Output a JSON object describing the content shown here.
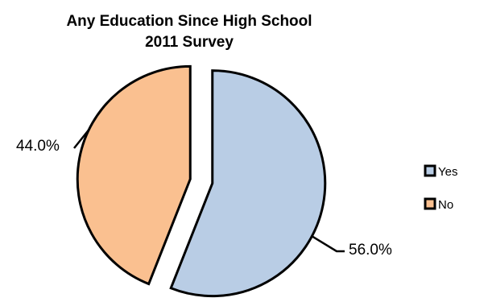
{
  "chart_data": {
    "type": "pie",
    "title": "Any Education Since High School",
    "subtitle": "2011 Survey",
    "categories": [
      "Yes",
      "No"
    ],
    "values": [
      56.0,
      44.0
    ],
    "data_labels": [
      "56.0%",
      "44.0%"
    ],
    "colors": {
      "Yes": "#b9cde5",
      "No": "#fac090",
      "outline": "#000000"
    },
    "exploded": true,
    "start_angle_deg": 0,
    "direction": "clockwise",
    "legend": {
      "placement": "right",
      "items": [
        {
          "label": "Yes",
          "color": "#b9cde5"
        },
        {
          "label": "No",
          "color": "#fac090"
        }
      ]
    }
  }
}
